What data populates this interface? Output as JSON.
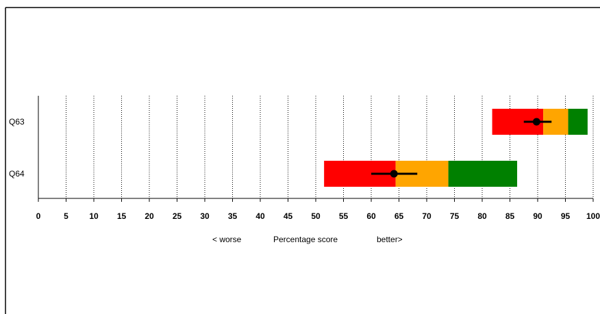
{
  "chart_data": {
    "type": "bar",
    "orientation": "horizontal",
    "categories": [
      "Q63",
      "Q64"
    ],
    "xlim": [
      0,
      100
    ],
    "xticks": [
      "0",
      "5",
      "10",
      "15",
      "20",
      "25",
      "30",
      "35",
      "40",
      "45",
      "50",
      "55",
      "60",
      "65",
      "70",
      "75",
      "80",
      "85",
      "90",
      "95",
      "100"
    ],
    "grid": "vertical dotted",
    "xlabel_left": "< worse",
    "xlabel": "Percentage score",
    "xlabel_right": "better>",
    "rows": [
      {
        "label": "Q63",
        "bands": [
          {
            "from": 81.8,
            "to": 91.0,
            "color": "#ff0000"
          },
          {
            "from": 91.0,
            "to": 95.5,
            "color": "#ffa500"
          },
          {
            "from": 95.5,
            "to": 99.0,
            "color": "#008000"
          }
        ],
        "score": 89.8,
        "ci": [
          87.5,
          92.5
        ]
      },
      {
        "label": "Q64",
        "bands": [
          {
            "from": 51.5,
            "to": 64.4,
            "color": "#ff0000"
          },
          {
            "from": 64.4,
            "to": 73.9,
            "color": "#ffa500"
          },
          {
            "from": 73.9,
            "to": 86.3,
            "color": "#008000"
          }
        ],
        "score": 64.1,
        "ci": [
          60.0,
          68.3
        ]
      }
    ]
  }
}
